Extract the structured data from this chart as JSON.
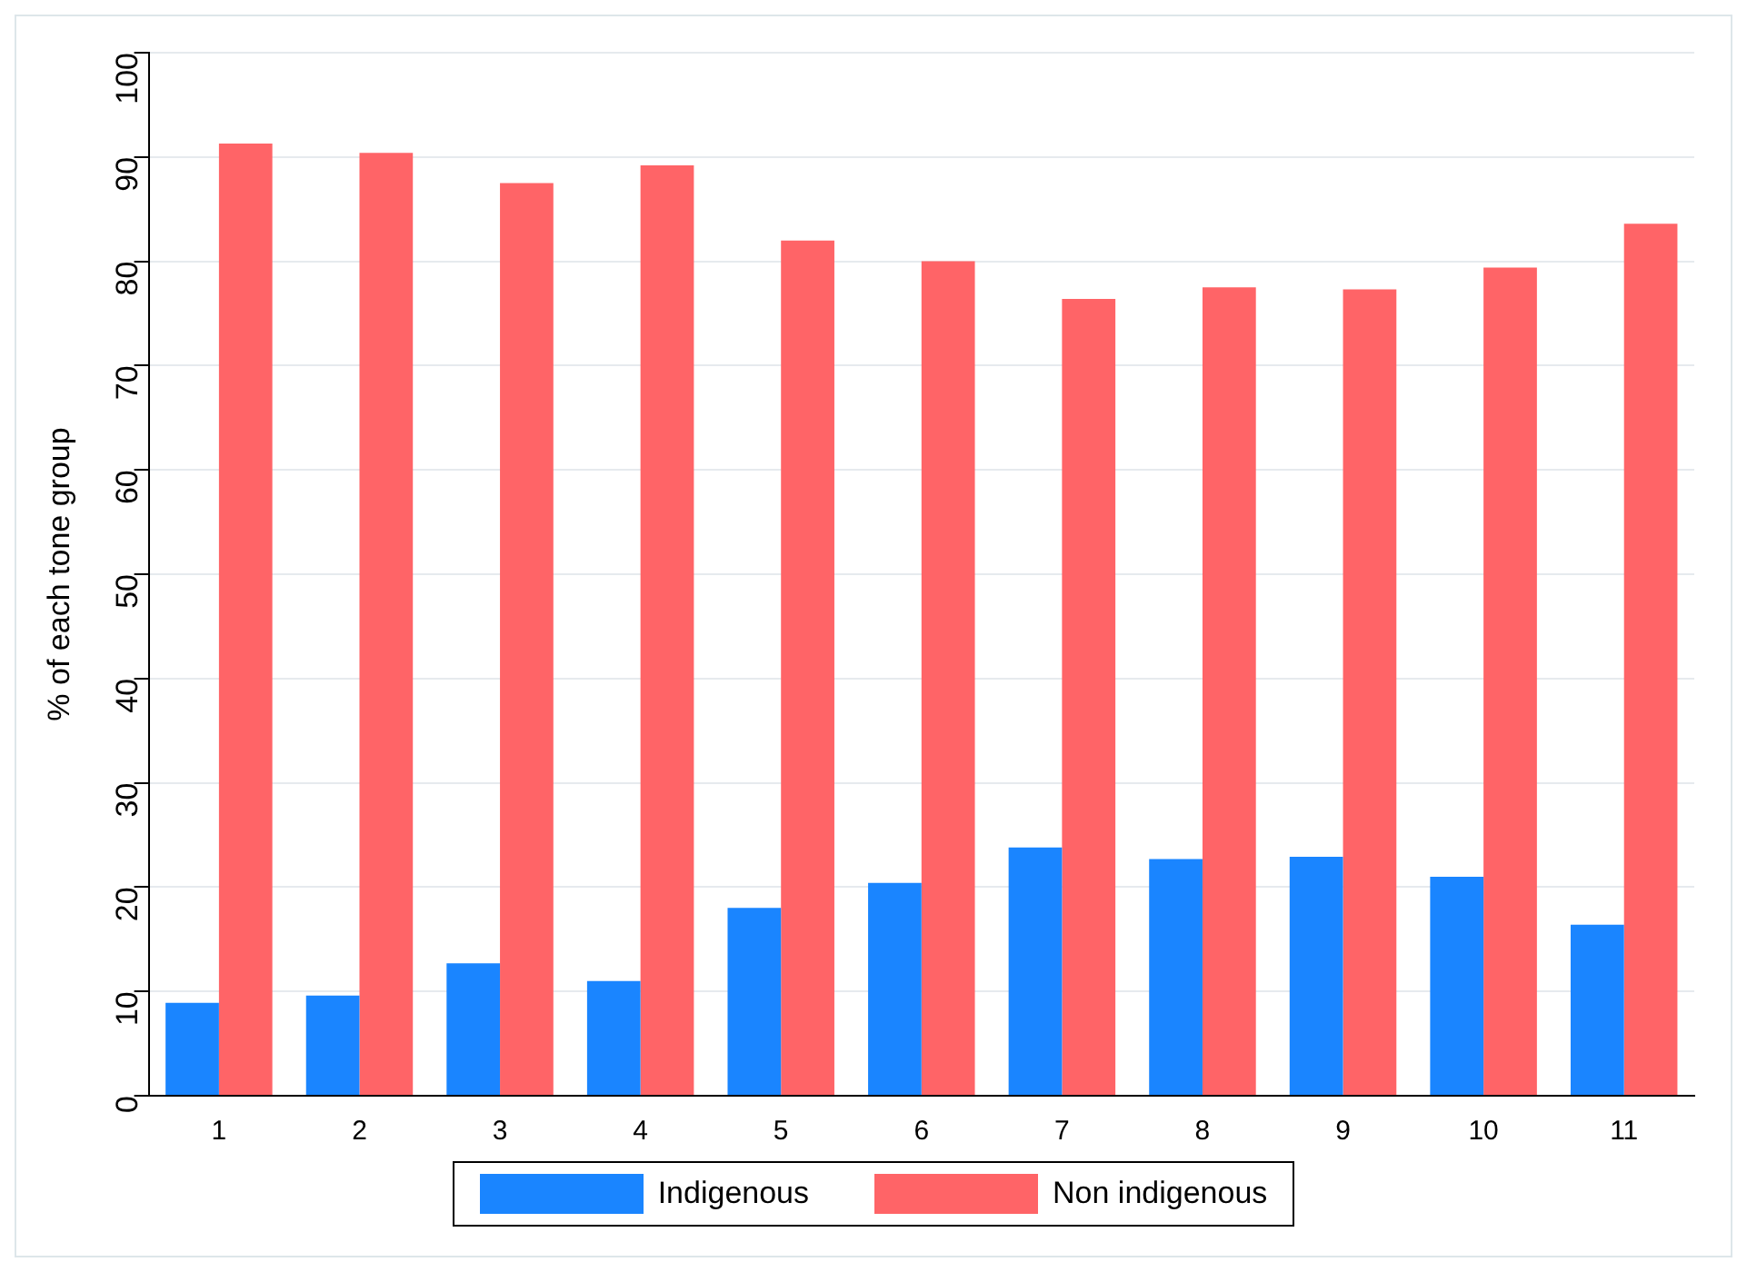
{
  "chart_data": {
    "type": "bar",
    "ylabel": "% of each tone group",
    "categories": [
      "1",
      "2",
      "3",
      "4",
      "5",
      "6",
      "7",
      "8",
      "9",
      "10",
      "11"
    ],
    "series": [
      {
        "name": "Indigenous",
        "color": "#1a85ff",
        "values": [
          8.9,
          9.6,
          12.7,
          11.0,
          18.0,
          20.4,
          23.8,
          22.7,
          22.9,
          21.0,
          16.4
        ]
      },
      {
        "name": "Non indigenous",
        "color": "#ff6467",
        "values": [
          91.3,
          90.4,
          87.5,
          89.2,
          82.0,
          80.0,
          76.4,
          77.5,
          77.3,
          79.4,
          83.6
        ]
      }
    ],
    "ylim": [
      0,
      100
    ],
    "yticks": [
      0,
      10,
      20,
      30,
      40,
      50,
      60,
      70,
      80,
      90,
      100
    ],
    "grid": "y",
    "legend": "bottom"
  }
}
